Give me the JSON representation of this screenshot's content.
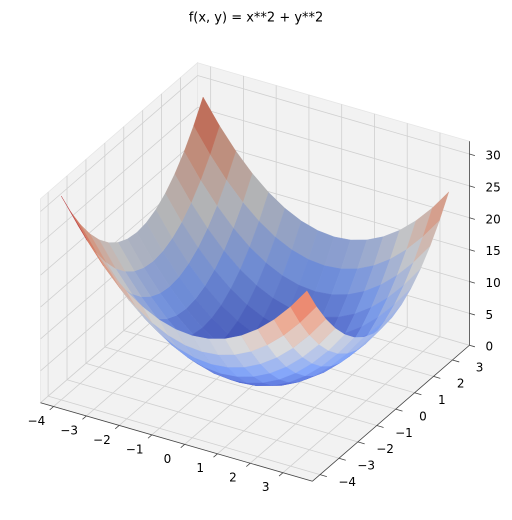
{
  "chart_data": {
    "type": "surface3d",
    "title": "f(x, y) = x**2 + y**2",
    "colormap": "coolwarm",
    "x": [
      -4,
      -3.5,
      -3,
      -2.5,
      -2,
      -1.5,
      -1,
      -0.5,
      0,
      0.5,
      1,
      1.5,
      2,
      2.5,
      3,
      3.5
    ],
    "y": [
      -4,
      -3.5,
      -3,
      -2.5,
      -2,
      -1.5,
      -1,
      -0.5,
      0,
      0.5,
      1,
      1.5,
      2,
      2.5,
      3,
      3.5
    ],
    "z": [
      [
        32,
        28.25,
        25,
        22.25,
        20,
        18.25,
        17,
        16.25,
        16,
        16.25,
        17,
        18.25,
        20,
        22.25,
        25,
        28.25
      ],
      [
        28.25,
        24.5,
        21.25,
        18.5,
        16.25,
        14.5,
        13.25,
        12.5,
        12.25,
        12.5,
        13.25,
        14.5,
        16.25,
        18.5,
        21.25,
        24.5
      ],
      [
        25,
        21.25,
        18,
        15.25,
        13,
        11.25,
        10,
        9.25,
        9,
        9.25,
        10,
        11.25,
        13,
        15.25,
        18,
        21.25
      ],
      [
        22.25,
        18.5,
        15.25,
        12.5,
        10.25,
        8.5,
        7.25,
        6.5,
        6.25,
        6.5,
        7.25,
        8.5,
        10.25,
        12.5,
        15.25,
        18.5
      ],
      [
        20,
        16.25,
        13,
        10.25,
        8,
        6.25,
        5,
        4.25,
        4,
        4.25,
        5,
        6.25,
        8,
        10.25,
        13,
        16.25
      ],
      [
        18.25,
        14.5,
        11.25,
        8.5,
        6.25,
        4.5,
        3.25,
        2.5,
        2.25,
        2.5,
        3.25,
        4.5,
        6.25,
        8.5,
        11.25,
        14.5
      ],
      [
        17,
        13.25,
        10,
        7.25,
        5,
        3.25,
        2,
        1.25,
        1,
        1.25,
        2,
        3.25,
        5,
        7.25,
        10,
        13.25
      ],
      [
        16.25,
        12.5,
        9.25,
        6.5,
        4.25,
        2.5,
        1.25,
        0.5,
        0.25,
        0.5,
        1.25,
        2.5,
        4.25,
        6.5,
        9.25,
        12.5
      ],
      [
        16,
        12.25,
        9,
        6.25,
        4,
        2.25,
        1,
        0.25,
        0,
        0.25,
        1,
        2.25,
        4,
        6.25,
        9,
        12.25
      ],
      [
        16.25,
        12.5,
        9.25,
        6.5,
        4.25,
        2.5,
        1.25,
        0.5,
        0.25,
        0.5,
        1.25,
        2.5,
        4.25,
        6.5,
        9.25,
        12.5
      ],
      [
        17,
        13.25,
        10,
        7.25,
        5,
        3.25,
        2,
        1.25,
        1,
        1.25,
        2,
        3.25,
        5,
        7.25,
        10,
        13.25
      ],
      [
        18.25,
        14.5,
        11.25,
        8.5,
        6.25,
        4.5,
        3.25,
        2.5,
        2.25,
        2.5,
        3.25,
        4.5,
        6.25,
        8.5,
        11.25,
        14.5
      ],
      [
        20,
        16.25,
        13,
        10.25,
        8,
        6.25,
        5,
        4.25,
        4,
        4.25,
        5,
        6.25,
        8,
        10.25,
        13,
        16.25
      ],
      [
        22.25,
        18.5,
        15.25,
        12.5,
        10.25,
        8.5,
        7.25,
        6.5,
        6.25,
        6.5,
        7.25,
        8.5,
        10.25,
        12.5,
        15.25,
        18.5
      ],
      [
        25,
        21.25,
        18,
        15.25,
        13,
        11.25,
        10,
        9.25,
        9,
        9.25,
        10,
        11.25,
        13,
        15.25,
        18,
        21.25
      ],
      [
        28.25,
        24.5,
        21.25,
        18.5,
        16.25,
        14.5,
        13.25,
        12.5,
        12.25,
        12.5,
        13.25,
        14.5,
        16.25,
        18.5,
        21.25,
        24.5
      ]
    ],
    "xlim": [
      -4.4,
      3.9
    ],
    "ylim": [
      -4.4,
      3.9
    ],
    "zlim": [
      0,
      32
    ],
    "xticks": [
      {
        "value": -4,
        "label": "−4"
      },
      {
        "value": -3,
        "label": "−3"
      },
      {
        "value": -2,
        "label": "−2"
      },
      {
        "value": -1,
        "label": "−1"
      },
      0,
      1,
      2,
      3
    ],
    "yticks": [
      {
        "value": -4,
        "label": "−4"
      },
      {
        "value": -3,
        "label": "−3"
      },
      {
        "value": -2,
        "label": "−2"
      },
      {
        "value": -1,
        "label": "−1"
      },
      0,
      1,
      2,
      3
    ],
    "zticks": [
      0,
      5,
      10,
      15,
      20,
      25,
      30
    ],
    "grid": true
  }
}
